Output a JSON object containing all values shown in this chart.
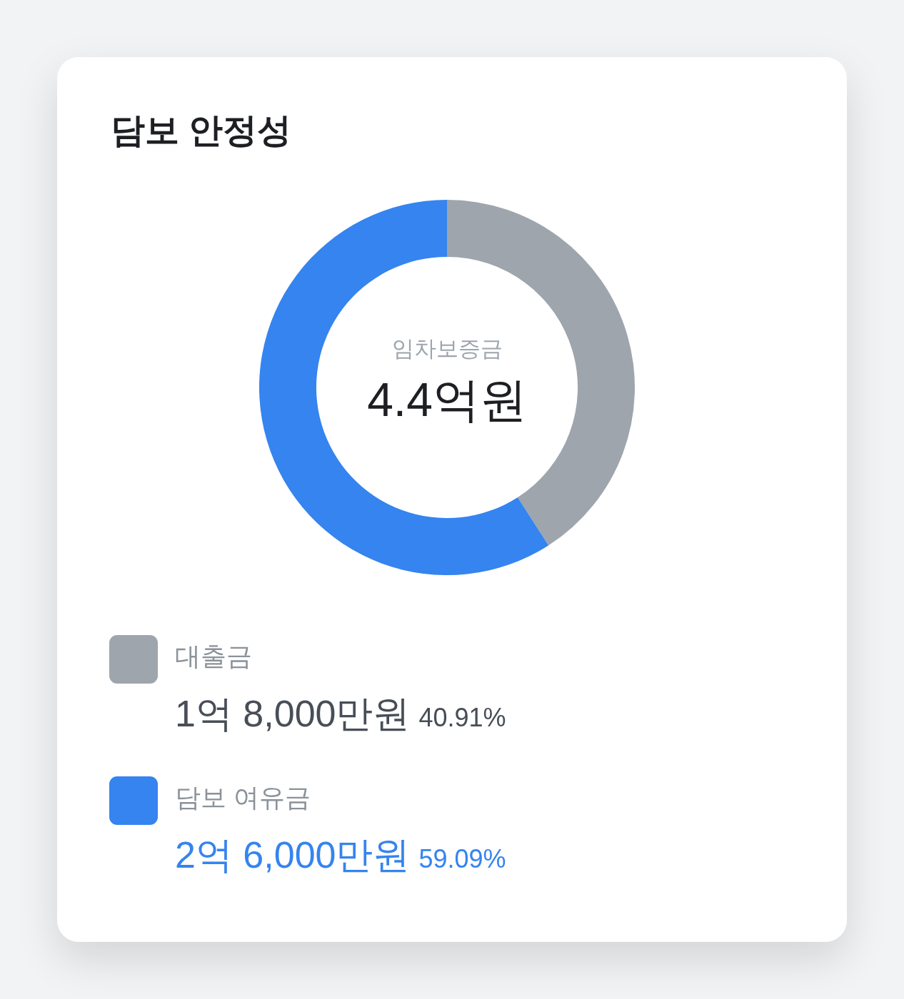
{
  "chart_data": {
    "type": "donut",
    "title": "담보 안정성",
    "categories": [
      "대출금",
      "담보 여유금"
    ],
    "values": [
      40.91,
      59.09
    ],
    "colors": [
      "#9ea5ad",
      "#3584ef"
    ],
    "annotations": [
      "임차보증금",
      "4.4억원",
      "1억 8,000만원",
      "40.91%",
      "2억 6,000만원",
      "59.09%"
    ],
    "legend": "bottom left"
  }
}
